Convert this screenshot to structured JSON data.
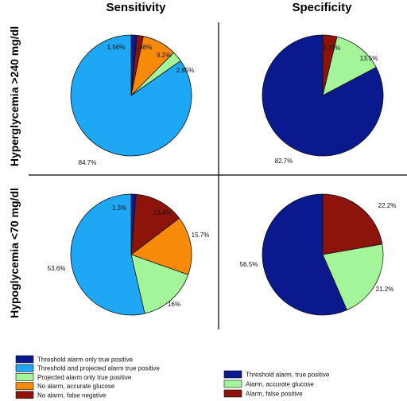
{
  "colors": {
    "threshold_tp": "#0a1a8e",
    "threshold_projected_tp": "#1ea7f5",
    "projected_tp": "#a4f59a",
    "no_alarm_accurate": "#f88a0a",
    "no_alarm_false_neg": "#8c140a",
    "spec_threshold_tp": "#0a1a8e",
    "spec_alarm_accurate": "#a4f59a",
    "spec_alarm_false_pos": "#8c140a"
  },
  "column_titles": [
    "Sensitivity",
    "Specificity"
  ],
  "row_titles": [
    "Hyperglycemia >240 mg/dl",
    "Hypoglycemia <70 mg/dl"
  ],
  "chart_data": [
    {
      "type": "pie",
      "column": "Sensitivity",
      "row": "Hyperglycemia >240 mg/dl",
      "labels": [
        "Threshold alarm only true positive",
        "No alarm, false negative",
        "No alarm, accurate glucose",
        "Projected alarm only true positive",
        "Threshold and projected alarm true positive"
      ],
      "values": [
        1.56,
        1.68,
        9.2,
        2.85,
        84.7
      ],
      "display": [
        "1.56%",
        "1.68%",
        "9.2%",
        "2.85%",
        "84.7%"
      ],
      "color_keys": [
        "threshold_tp",
        "no_alarm_false_neg",
        "no_alarm_accurate",
        "projected_tp",
        "threshold_projected_tp"
      ]
    },
    {
      "type": "pie",
      "column": "Specificity",
      "row": "Hyperglycemia >240 mg/dl",
      "labels": [
        "Alarm, false positive",
        "Alarm, accurate glucose",
        "Threshold alarm, true positive"
      ],
      "values": [
        3.79,
        13.5,
        82.7
      ],
      "display": [
        "3.79%",
        "13.5%",
        "82.7%"
      ],
      "color_keys": [
        "spec_alarm_false_pos",
        "spec_alarm_accurate",
        "spec_threshold_tp"
      ]
    },
    {
      "type": "pie",
      "column": "Sensitivity",
      "row": "Hypoglycemia <70 mg/dl",
      "labels": [
        "Threshold alarm only true positive",
        "No alarm, false negative",
        "No alarm, accurate glucose",
        "Projected alarm only true positive",
        "Threshold and projected alarm true positive"
      ],
      "values": [
        1.3,
        13.4,
        15.7,
        16,
        53.6
      ],
      "display": [
        "1.3%",
        "13.4%",
        "15.7%",
        "16%",
        "53.6%"
      ],
      "color_keys": [
        "threshold_tp",
        "no_alarm_false_neg",
        "no_alarm_accurate",
        "projected_tp",
        "threshold_projected_tp"
      ]
    },
    {
      "type": "pie",
      "column": "Specificity",
      "row": "Hypoglycemia <70 mg/dl",
      "labels": [
        "Alarm, false positive",
        "Alarm, accurate glucose",
        "Threshold alarm, true positive"
      ],
      "values": [
        22.2,
        21.2,
        56.5
      ],
      "display": [
        "22.2%",
        "21.2%",
        "56.5%"
      ],
      "color_keys": [
        "spec_alarm_false_pos",
        "spec_alarm_accurate",
        "spec_threshold_tp"
      ]
    }
  ],
  "legends": {
    "sensitivity": [
      {
        "label": "Threshold alarm only true positive",
        "color_key": "threshold_tp"
      },
      {
        "label": "Threshold and projected alarm true positive",
        "color_key": "threshold_projected_tp"
      },
      {
        "label": "Projected alarm only true positive",
        "color_key": "projected_tp"
      },
      {
        "label": "No alarm, accurate glucose",
        "color_key": "no_alarm_accurate"
      },
      {
        "label": "No alarm, false negative",
        "color_key": "no_alarm_false_neg"
      }
    ],
    "specificity": [
      {
        "label": "Threshold alarm, true positive",
        "color_key": "spec_threshold_tp"
      },
      {
        "label": "Alarm, accurate glucose",
        "color_key": "spec_alarm_accurate"
      },
      {
        "label": "Alarm, false positive",
        "color_key": "spec_alarm_false_pos"
      }
    ]
  }
}
